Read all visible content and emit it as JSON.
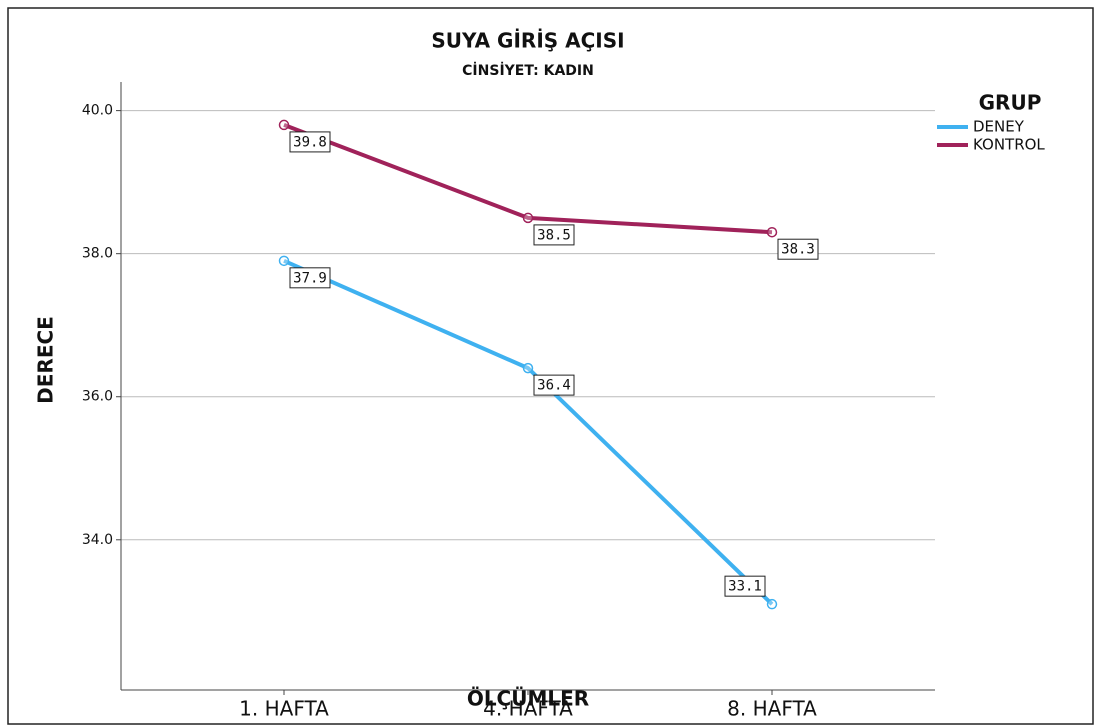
{
  "chart_data": {
    "type": "line",
    "title": "SUYA GİRİŞ AÇISI",
    "subtitle": "CİNSİYET: KADIN",
    "x_label": "ÖLÇÜMLER",
    "y_label": "DERECE",
    "legend_title": "GRUP",
    "legend": "right",
    "categories": [
      "1. HAFTA",
      "4. HAFTA",
      "8. HAFTA"
    ],
    "series": [
      {
        "name": "DENEY",
        "color": "#3fb1f0",
        "values": [
          37.9,
          36.4,
          33.1
        ]
      },
      {
        "name": "KONTROL",
        "color": "#a0225a",
        "values": [
          39.8,
          38.5,
          38.3
        ]
      }
    ],
    "ylim": [
      31.9,
      40.4
    ],
    "yticks": [
      {
        "value": 34,
        "label": "34.0"
      },
      {
        "value": 36,
        "label": "36.0"
      },
      {
        "value": 38,
        "label": "38.0"
      },
      {
        "value": 40,
        "label": "40.0"
      }
    ],
    "grid": true
  }
}
